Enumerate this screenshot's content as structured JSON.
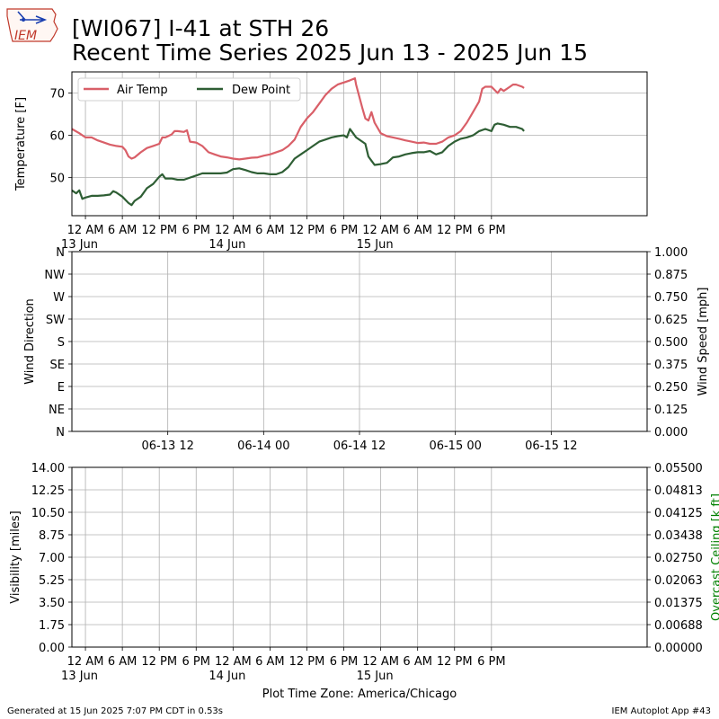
{
  "header": {
    "logo_text": "IEM",
    "title_line1": "[WI067] I-41 at STH 26",
    "title_line2": "Recent Time Series 2025 Jun 13 - 2025 Jun 15"
  },
  "footer": {
    "generated": "Generated at 15 Jun 2025 7:07 PM CDT in 0.53s",
    "app": "IEM Autoplot App #43"
  },
  "colors": {
    "air_temp": "#d95f68",
    "dew_point": "#2e5e34",
    "grid": "#b0b0b0",
    "ceiling_label": "#008000"
  },
  "chart_data": [
    {
      "id": "temperature",
      "type": "line",
      "xlabel": "",
      "ylabel": "Temperature [F]",
      "ylim": [
        41,
        75
      ],
      "yticks": [
        50,
        60,
        70
      ],
      "grid": true,
      "legend": "top-left",
      "x_unit": "hours after 2025-06-13 00:00 America/Chicago",
      "xlim": [
        -2.2,
        91.3
      ],
      "xticks": [
        {
          "x": 0,
          "label": "12 AM",
          "sub": "13 Jun"
        },
        {
          "x": 6,
          "label": "6 AM",
          "sub": ""
        },
        {
          "x": 12,
          "label": "12 PM",
          "sub": ""
        },
        {
          "x": 18,
          "label": "6 PM",
          "sub": ""
        },
        {
          "x": 24,
          "label": "12 AM",
          "sub": "14 Jun"
        },
        {
          "x": 30,
          "label": "6 AM",
          "sub": ""
        },
        {
          "x": 36,
          "label": "12 PM",
          "sub": ""
        },
        {
          "x": 42,
          "label": "6 PM",
          "sub": ""
        },
        {
          "x": 48,
          "label": "12 AM",
          "sub": "15 Jun"
        },
        {
          "x": 54,
          "label": "6 AM",
          "sub": ""
        },
        {
          "x": 60,
          "label": "12 PM",
          "sub": ""
        },
        {
          "x": 66,
          "label": "6 PM",
          "sub": ""
        }
      ],
      "series": [
        {
          "name": "Air Temp",
          "points": [
            [
              -2.2,
              61.5
            ],
            [
              -1,
              60.5
            ],
            [
              0,
              59.5
            ],
            [
              1,
              59.5
            ],
            [
              2,
              58.8
            ],
            [
              3,
              58.3
            ],
            [
              4,
              57.8
            ],
            [
              5,
              57.5
            ],
            [
              6,
              57.3
            ],
            [
              6.5,
              56.5
            ],
            [
              7,
              55
            ],
            [
              7.5,
              54.5
            ],
            [
              8,
              54.8
            ],
            [
              9,
              56
            ],
            [
              10,
              57
            ],
            [
              11,
              57.5
            ],
            [
              12,
              58
            ],
            [
              12.5,
              59.5
            ],
            [
              13,
              59.5
            ],
            [
              14,
              60.2
            ],
            [
              14.5,
              61
            ],
            [
              15,
              61
            ],
            [
              16,
              60.8
            ],
            [
              16.5,
              61.2
            ],
            [
              17,
              58.5
            ],
            [
              18,
              58.3
            ],
            [
              19,
              57.5
            ],
            [
              20,
              56
            ],
            [
              21,
              55.5
            ],
            [
              22,
              55
            ],
            [
              23,
              54.8
            ],
            [
              24,
              54.5
            ],
            [
              25,
              54.3
            ],
            [
              26,
              54.5
            ],
            [
              27,
              54.7
            ],
            [
              28,
              54.8
            ],
            [
              29,
              55.2
            ],
            [
              30,
              55.5
            ],
            [
              31,
              56
            ],
            [
              32,
              56.5
            ],
            [
              33,
              57.5
            ],
            [
              34,
              59
            ],
            [
              35,
              62
            ],
            [
              36,
              64
            ],
            [
              37,
              65.5
            ],
            [
              38,
              67.5
            ],
            [
              39,
              69.5
            ],
            [
              40,
              71
            ],
            [
              41,
              72
            ],
            [
              42,
              72.5
            ],
            [
              43,
              73
            ],
            [
              43.8,
              73.5
            ],
            [
              44,
              72
            ],
            [
              45,
              66.5
            ],
            [
              45.5,
              64
            ],
            [
              46,
              63.5
            ],
            [
              46.5,
              65.5
            ],
            [
              47,
              63
            ],
            [
              48,
              60.5
            ],
            [
              49,
              59.8
            ],
            [
              50,
              59.5
            ],
            [
              51,
              59.2
            ],
            [
              52,
              58.8
            ],
            [
              53,
              58.5
            ],
            [
              54,
              58.2
            ],
            [
              55,
              58.3
            ],
            [
              56,
              58
            ],
            [
              57,
              58
            ],
            [
              58,
              58.5
            ],
            [
              59,
              59.5
            ],
            [
              60,
              60
            ],
            [
              61,
              61
            ],
            [
              62,
              63
            ],
            [
              63,
              65.5
            ],
            [
              64,
              68
            ],
            [
              64.5,
              71
            ],
            [
              65,
              71.5
            ],
            [
              66,
              71.5
            ],
            [
              67,
              70
            ],
            [
              67.5,
              71
            ],
            [
              68,
              70.5
            ],
            [
              69,
              71.5
            ],
            [
              69.5,
              72
            ],
            [
              70,
              72
            ],
            [
              71,
              71.5
            ],
            [
              71.3,
              71.2
            ]
          ]
        },
        {
          "name": "Dew Point",
          "points": [
            [
              -2.2,
              47
            ],
            [
              -1.5,
              46.3
            ],
            [
              -1,
              47
            ],
            [
              -0.5,
              45
            ],
            [
              0,
              45.3
            ],
            [
              1,
              45.7
            ],
            [
              2,
              45.7
            ],
            [
              3,
              45.8
            ],
            [
              4,
              46
            ],
            [
              4.5,
              46.8
            ],
            [
              5,
              46.5
            ],
            [
              6,
              45.5
            ],
            [
              7,
              44
            ],
            [
              7.5,
              43.5
            ],
            [
              8,
              44.5
            ],
            [
              9,
              45.5
            ],
            [
              10,
              47.5
            ],
            [
              11,
              48.5
            ],
            [
              12,
              50.2
            ],
            [
              12.5,
              50.8
            ],
            [
              13,
              49.8
            ],
            [
              14,
              49.8
            ],
            [
              15,
              49.5
            ],
            [
              16,
              49.5
            ],
            [
              17,
              50
            ],
            [
              18,
              50.5
            ],
            [
              19,
              51
            ],
            [
              20,
              51
            ],
            [
              21,
              51
            ],
            [
              22,
              51
            ],
            [
              23,
              51.2
            ],
            [
              24,
              52
            ],
            [
              25,
              52.2
            ],
            [
              26,
              51.8
            ],
            [
              27,
              51.3
            ],
            [
              28,
              51
            ],
            [
              29,
              51
            ],
            [
              30,
              50.8
            ],
            [
              31,
              50.8
            ],
            [
              32,
              51.3
            ],
            [
              33,
              52.5
            ],
            [
              34,
              54.5
            ],
            [
              35,
              55.5
            ],
            [
              36,
              56.5
            ],
            [
              37,
              57.5
            ],
            [
              38,
              58.5
            ],
            [
              39,
              59
            ],
            [
              40,
              59.5
            ],
            [
              41,
              59.8
            ],
            [
              42,
              60
            ],
            [
              42.5,
              59.5
            ],
            [
              43,
              61.5
            ],
            [
              43.5,
              60.5
            ],
            [
              44,
              59.5
            ],
            [
              45,
              58.5
            ],
            [
              45.5,
              58
            ],
            [
              46,
              55
            ],
            [
              46.5,
              54
            ],
            [
              47,
              53
            ],
            [
              48,
              53.2
            ],
            [
              49,
              53.5
            ],
            [
              50,
              54.8
            ],
            [
              51,
              55
            ],
            [
              52,
              55.5
            ],
            [
              53,
              55.8
            ],
            [
              54,
              56
            ],
            [
              55,
              56
            ],
            [
              56,
              56.3
            ],
            [
              57,
              55.5
            ],
            [
              58,
              56
            ],
            [
              59,
              57.5
            ],
            [
              60,
              58.5
            ],
            [
              61,
              59.2
            ],
            [
              62,
              59.5
            ],
            [
              63,
              60
            ],
            [
              64,
              61
            ],
            [
              65,
              61.5
            ],
            [
              66,
              61
            ],
            [
              66.5,
              62.5
            ],
            [
              67,
              62.8
            ],
            [
              68,
              62.5
            ],
            [
              69,
              62
            ],
            [
              70,
              62
            ],
            [
              71,
              61.5
            ],
            [
              71.3,
              61
            ]
          ]
        }
      ]
    },
    {
      "id": "wind",
      "type": "line",
      "xlabel": "",
      "ylabel": "Wind Direction",
      "ylabel_right": "Wind Speed [mph]",
      "yticks_left": [
        "N",
        "NE",
        "E",
        "SE",
        "S",
        "SW",
        "W",
        "NW",
        "N"
      ],
      "yticks_right": [
        "0.000",
        "0.125",
        "0.250",
        "0.375",
        "0.500",
        "0.625",
        "0.750",
        "0.875",
        "1.000"
      ],
      "xticks": [
        {
          "x": 12,
          "label": "06-13 12"
        },
        {
          "x": 24,
          "label": "06-14 00"
        },
        {
          "x": 36,
          "label": "06-14 12"
        },
        {
          "x": 48,
          "label": "06-15 00"
        },
        {
          "x": 60,
          "label": "06-15 12"
        }
      ],
      "xlim": [
        0,
        72
      ],
      "grid": true,
      "series": []
    },
    {
      "id": "visibility",
      "type": "line",
      "xlabel": "Plot Time Zone: America/Chicago",
      "ylabel": "Visibility [miles]",
      "ylabel_right": "Overcast Ceiling [k ft]",
      "ylim": [
        0,
        14
      ],
      "yticks_left": [
        "0.00",
        "1.75",
        "3.50",
        "5.25",
        "7.00",
        "8.75",
        "10.50",
        "12.25",
        "14.00"
      ],
      "yticks_right": [
        "0.00000",
        "0.00688",
        "0.01375",
        "0.02063",
        "0.02750",
        "0.03438",
        "0.04125",
        "0.04813",
        "0.05500"
      ],
      "xlim": [
        -2.2,
        91.3
      ],
      "xticks": [
        {
          "x": 0,
          "label": "12 AM",
          "sub": "13 Jun"
        },
        {
          "x": 6,
          "label": "6 AM",
          "sub": ""
        },
        {
          "x": 12,
          "label": "12 PM",
          "sub": ""
        },
        {
          "x": 18,
          "label": "6 PM",
          "sub": ""
        },
        {
          "x": 24,
          "label": "12 AM",
          "sub": "14 Jun"
        },
        {
          "x": 30,
          "label": "6 AM",
          "sub": ""
        },
        {
          "x": 36,
          "label": "12 PM",
          "sub": ""
        },
        {
          "x": 42,
          "label": "6 PM",
          "sub": ""
        },
        {
          "x": 48,
          "label": "12 AM",
          "sub": "15 Jun"
        },
        {
          "x": 54,
          "label": "6 AM",
          "sub": ""
        },
        {
          "x": 60,
          "label": "12 PM",
          "sub": ""
        },
        {
          "x": 66,
          "label": "6 PM",
          "sub": ""
        }
      ],
      "grid": true,
      "series": []
    }
  ]
}
